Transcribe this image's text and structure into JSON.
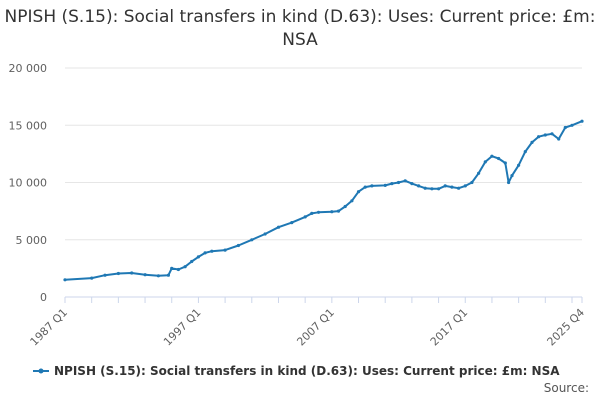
{
  "chart_data": {
    "type": "line",
    "title": "NPISH (S.15): Social transfers in kind (D.63): Uses: Current price: £m: NSA",
    "xlabel": "",
    "ylabel": "",
    "ylim": [
      0,
      20000
    ],
    "yticks": [
      "0",
      "5 000",
      "10 000",
      "15 000",
      "20 000"
    ],
    "xticks": [
      "1987 Q1",
      "1997 Q1",
      "2007 Q1",
      "2017 Q1",
      "2025 Q4"
    ],
    "grid": true,
    "legend_placement": "bottom-center",
    "series_color": "#1f78b4",
    "series": [
      {
        "name": "NPISH (S.15): Social transfers in kind (D.63): Uses: Current price: £m: NSA",
        "points": [
          [
            "1987 Q1",
            1500
          ],
          [
            "1989 Q1",
            1650
          ],
          [
            "1990 Q1",
            1900
          ],
          [
            "1991 Q1",
            2050
          ],
          [
            "1992 Q1",
            2100
          ],
          [
            "1993 Q1",
            1950
          ],
          [
            "1994 Q1",
            1850
          ],
          [
            "1994 Q4",
            1900
          ],
          [
            "1995 Q1",
            2500
          ],
          [
            "1995 Q3",
            2400
          ],
          [
            "1996 Q1",
            2650
          ],
          [
            "1996 Q3",
            3100
          ],
          [
            "1997 Q1",
            3500
          ],
          [
            "1997 Q3",
            3850
          ],
          [
            "1998 Q1",
            4000
          ],
          [
            "1999 Q1",
            4100
          ],
          [
            "2000 Q1",
            4500
          ],
          [
            "2001 Q1",
            5000
          ],
          [
            "2002 Q1",
            5500
          ],
          [
            "2003 Q1",
            6100
          ],
          [
            "2004 Q1",
            6500
          ],
          [
            "2005 Q1",
            7000
          ],
          [
            "2005 Q3",
            7300
          ],
          [
            "2006 Q1",
            7400
          ],
          [
            "2007 Q1",
            7450
          ],
          [
            "2007 Q3",
            7500
          ],
          [
            "2008 Q1",
            7900
          ],
          [
            "2008 Q3",
            8400
          ],
          [
            "2009 Q1",
            9200
          ],
          [
            "2009 Q3",
            9600
          ],
          [
            "2010 Q1",
            9700
          ],
          [
            "2011 Q1",
            9750
          ],
          [
            "2011 Q3",
            9900
          ],
          [
            "2012 Q1",
            10000
          ],
          [
            "2012 Q3",
            10150
          ],
          [
            "2013 Q1",
            9900
          ],
          [
            "2013 Q3",
            9700
          ],
          [
            "2014 Q1",
            9500
          ],
          [
            "2014 Q3",
            9450
          ],
          [
            "2015 Q1",
            9450
          ],
          [
            "2015 Q3",
            9700
          ],
          [
            "2016 Q1",
            9600
          ],
          [
            "2016 Q3",
            9500
          ],
          [
            "2017 Q1",
            9700
          ],
          [
            "2017 Q3",
            10000
          ],
          [
            "2018 Q1",
            10800
          ],
          [
            "2018 Q3",
            11800
          ],
          [
            "2019 Q1",
            12300
          ],
          [
            "2019 Q3",
            12100
          ],
          [
            "2020 Q1",
            11700
          ],
          [
            "2020 Q2",
            10000
          ],
          [
            "2020 Q3",
            10600
          ],
          [
            "2021 Q1",
            11500
          ],
          [
            "2021 Q3",
            12700
          ],
          [
            "2022 Q1",
            13500
          ],
          [
            "2022 Q3",
            14000
          ],
          [
            "2023 Q1",
            14150
          ],
          [
            "2023 Q3",
            14250
          ],
          [
            "2024 Q1",
            13800
          ],
          [
            "2024 Q3",
            14800
          ],
          [
            "2025 Q1",
            15000
          ],
          [
            "2025 Q4",
            15350
          ]
        ]
      }
    ]
  },
  "source_label": "Source:"
}
